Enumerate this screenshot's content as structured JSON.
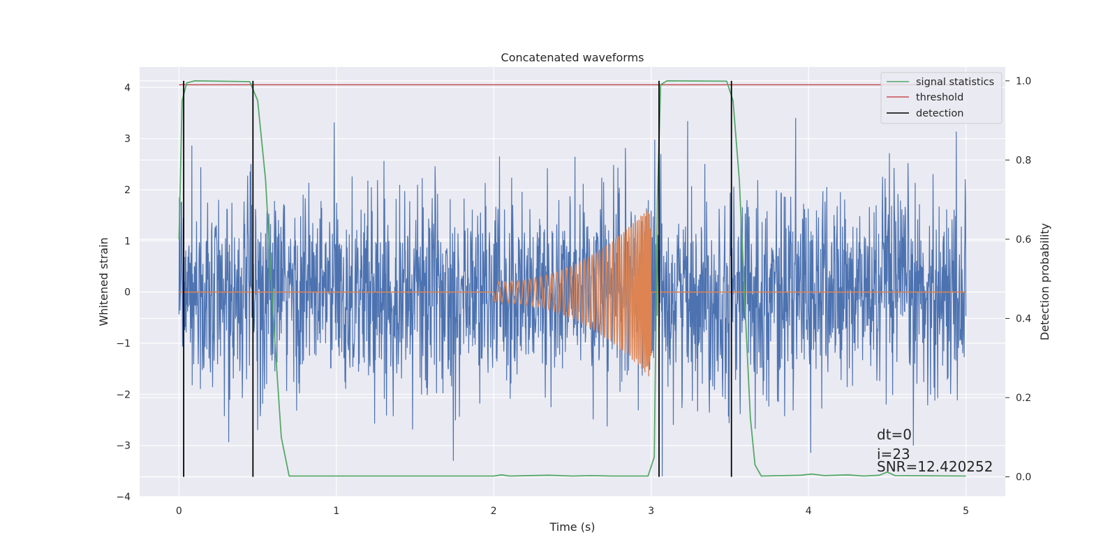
{
  "chart_data": {
    "type": "line",
    "title": "Concatenated waveforms",
    "xlabel": "Time (s)",
    "ylabel": "Whitened strain",
    "y2label": "Detection probability",
    "xlim": [
      -0.25,
      5.25
    ],
    "ylim": [
      -4.0,
      4.4
    ],
    "y2lim": [
      -0.05,
      1.035
    ],
    "xticks": [
      0,
      1,
      2,
      3,
      4,
      5
    ],
    "yticks": [
      -4,
      -3,
      -2,
      -1,
      0,
      1,
      2,
      3,
      4
    ],
    "y2ticks": [
      0.0,
      0.2,
      0.4,
      0.6,
      0.8,
      1.0
    ],
    "xtick_labels": [
      "0",
      "1",
      "2",
      "3",
      "4",
      "5"
    ],
    "ytick_labels": [
      "−4",
      "−3",
      "−2",
      "−1",
      "0",
      "1",
      "2",
      "3",
      "4"
    ],
    "y2tick_labels": [
      "0.0",
      "0.2",
      "0.4",
      "0.6",
      "0.8",
      "1.0"
    ],
    "grid": true,
    "legend_position": "top-right",
    "background": "#eaeaf2",
    "series": [
      {
        "role": "noise",
        "color": "#4c72b0",
        "axis": "left",
        "x_range": [
          0,
          5
        ],
        "typical_amplitude": 1.0,
        "peak_range": [
          -3.6,
          3.6
        ]
      },
      {
        "role": "injected-signal",
        "color": "#dd8452",
        "axis": "left",
        "x_range": [
          0,
          5
        ],
        "chirp_start": 2.0,
        "chirp_end": 3.0,
        "peak_amplitude": 1.7
      },
      {
        "name": "signal statistics",
        "color": "#55a868",
        "axis": "right",
        "points": [
          [
            0.0,
            0.6
          ],
          [
            0.02,
            0.95
          ],
          [
            0.05,
            0.995
          ],
          [
            0.1,
            1.0
          ],
          [
            0.45,
            0.998
          ],
          [
            0.5,
            0.95
          ],
          [
            0.55,
            0.75
          ],
          [
            0.6,
            0.4
          ],
          [
            0.65,
            0.1
          ],
          [
            0.7,
            0.002
          ],
          [
            1.0,
            0.002
          ],
          [
            2.0,
            0.002
          ],
          [
            2.05,
            0.005
          ],
          [
            2.1,
            0.002
          ],
          [
            2.35,
            0.004
          ],
          [
            2.5,
            0.002
          ],
          [
            2.62,
            0.003
          ],
          [
            2.75,
            0.002
          ],
          [
            2.98,
            0.002
          ],
          [
            3.02,
            0.05
          ],
          [
            3.04,
            0.7
          ],
          [
            3.06,
            0.99
          ],
          [
            3.1,
            1.0
          ],
          [
            3.48,
            0.999
          ],
          [
            3.52,
            0.95
          ],
          [
            3.56,
            0.75
          ],
          [
            3.6,
            0.4
          ],
          [
            3.63,
            0.15
          ],
          [
            3.66,
            0.03
          ],
          [
            3.7,
            0.002
          ],
          [
            3.95,
            0.004
          ],
          [
            4.02,
            0.007
          ],
          [
            4.1,
            0.003
          ],
          [
            4.25,
            0.005
          ],
          [
            4.35,
            0.002
          ],
          [
            4.45,
            0.004
          ],
          [
            4.5,
            0.012
          ],
          [
            4.55,
            0.003
          ],
          [
            5.0,
            0.002
          ]
        ]
      },
      {
        "name": "threshold",
        "color": "#c44e52",
        "axis": "right",
        "value": 0.99,
        "x_range": [
          0,
          5
        ]
      },
      {
        "name": "detection",
        "color": "#000000",
        "axis": "right",
        "x": [
          0.03,
          0.47,
          3.05,
          3.51
        ],
        "y_range": [
          0.0,
          1.0
        ]
      }
    ],
    "legend": [
      "signal statistics",
      "threshold",
      "detection"
    ],
    "annotations": [
      "dt=0",
      "i=23",
      "SNR=12.420252"
    ]
  }
}
